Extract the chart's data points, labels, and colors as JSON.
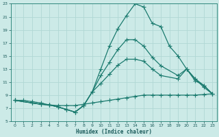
{
  "title": "",
  "xlabel": "Humidex (Indice chaleur)",
  "bg_color": "#cceae7",
  "grid_color": "#b0d8d4",
  "line_color": "#1a7a6e",
  "marker": "+",
  "markersize": 4,
  "linewidth": 0.9,
  "xlim": [
    -0.5,
    23.5
  ],
  "ylim": [
    5,
    23
  ],
  "xticks": [
    0,
    1,
    2,
    3,
    4,
    5,
    6,
    7,
    8,
    9,
    10,
    11,
    12,
    13,
    14,
    15,
    16,
    17,
    18,
    19,
    20,
    21,
    22,
    23
  ],
  "yticks": [
    5,
    7,
    9,
    11,
    13,
    15,
    17,
    19,
    21,
    23
  ],
  "line1_x": [
    0,
    1,
    2,
    3,
    4,
    5,
    6,
    7,
    8,
    9,
    10,
    11,
    12,
    13,
    14,
    15,
    16,
    17,
    18,
    19,
    20,
    21,
    22,
    23
  ],
  "line1_y": [
    8.2,
    8.2,
    8.0,
    7.8,
    7.5,
    7.4,
    7.4,
    7.4,
    7.6,
    7.8,
    8.0,
    8.2,
    8.4,
    8.6,
    8.8,
    9.0,
    9.0,
    9.0,
    9.0,
    9.0,
    9.0,
    9.0,
    9.1,
    9.2
  ],
  "line2_x": [
    0,
    2,
    3,
    4,
    5,
    6,
    7,
    8,
    9,
    10,
    11,
    12,
    13,
    14,
    15,
    16,
    17,
    19,
    20,
    21,
    22,
    23
  ],
  "line2_y": [
    8.2,
    7.8,
    7.6,
    7.5,
    7.2,
    6.8,
    6.4,
    7.4,
    9.5,
    10.8,
    12.2,
    13.6,
    14.5,
    14.5,
    14.2,
    13.0,
    12.0,
    11.5,
    13.0,
    11.2,
    10.5,
    9.2
  ],
  "line3_x": [
    0,
    2,
    3,
    4,
    5,
    6,
    7,
    8,
    9,
    10,
    11,
    12,
    13,
    14,
    15,
    16,
    17,
    19,
    20,
    21,
    22,
    23
  ],
  "line3_y": [
    8.2,
    7.8,
    7.6,
    7.5,
    7.2,
    6.8,
    6.4,
    7.4,
    9.5,
    12.0,
    14.0,
    16.0,
    17.5,
    17.5,
    16.5,
    14.8,
    13.5,
    12.0,
    13.0,
    11.5,
    10.5,
    9.2
  ],
  "line4_x": [
    0,
    2,
    3,
    4,
    5,
    6,
    7,
    8,
    9,
    10,
    11,
    12,
    13,
    14,
    15,
    16,
    17,
    18,
    19,
    20,
    21,
    22,
    23
  ],
  "line4_y": [
    8.2,
    7.8,
    7.6,
    7.5,
    7.2,
    6.8,
    6.4,
    7.4,
    9.5,
    13.0,
    16.5,
    19.2,
    21.2,
    23.0,
    22.5,
    20.0,
    19.5,
    16.5,
    15.0,
    13.0,
    11.5,
    10.2,
    9.2
  ]
}
